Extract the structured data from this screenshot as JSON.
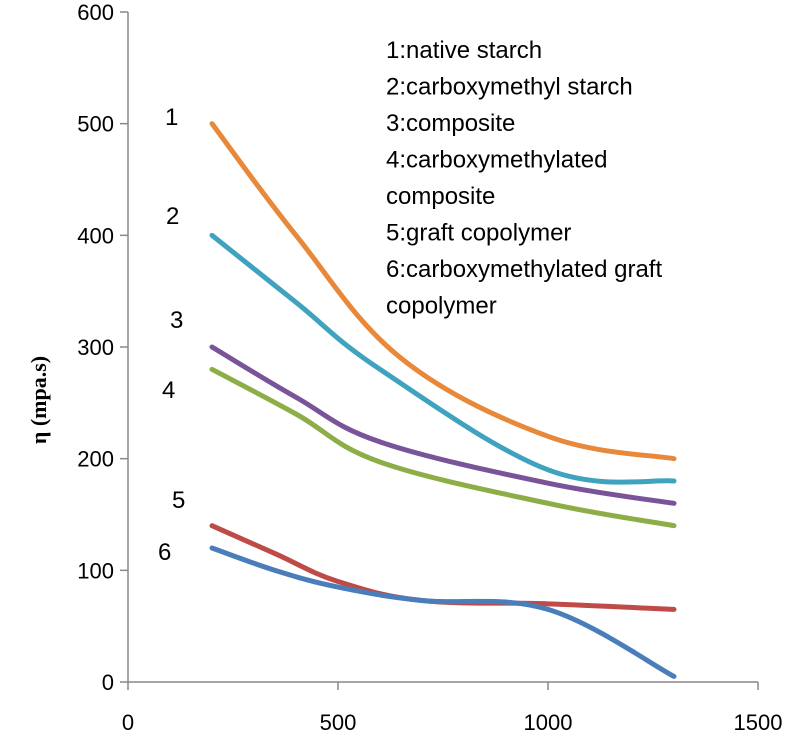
{
  "chart_data": {
    "type": "line",
    "title": "",
    "xlabel": "",
    "ylabel": "η (mpa.s)",
    "xlim": [
      0,
      1500
    ],
    "ylim": [
      0,
      600
    ],
    "xticks": [
      0,
      500,
      1000,
      1500
    ],
    "yticks": [
      0,
      100,
      200,
      300,
      400,
      500,
      600
    ],
    "grid": false,
    "legend": [
      "1:native starch",
      "2:carboxymethyl  starch",
      "3:composite",
      "4:carboxymethylated",
      "composite",
      "5:graft copolymer",
      "6:carboxymethylated graft",
      "copolymer"
    ],
    "series": [
      {
        "label": "1",
        "color": "#E8883A",
        "x": [
          200,
          400,
          650,
          1000,
          1300
        ],
        "y": [
          500,
          400,
          290,
          220,
          200
        ]
      },
      {
        "label": "2",
        "color": "#3FA3C0",
        "x": [
          200,
          400,
          600,
          1000,
          1300
        ],
        "y": [
          400,
          340,
          280,
          190,
          180
        ]
      },
      {
        "label": "3",
        "color": "#7A5499",
        "x": [
          200,
          400,
          600,
          1000,
          1300
        ],
        "y": [
          300,
          255,
          215,
          178,
          160
        ]
      },
      {
        "label": "4",
        "color": "#8DAE46",
        "x": [
          200,
          400,
          600,
          1000,
          1300
        ],
        "y": [
          280,
          240,
          197,
          160,
          140
        ]
      },
      {
        "label": "5",
        "color": "#BE4B48",
        "x": [
          200,
          350,
          500,
          700,
          1000,
          1300
        ],
        "y": [
          140,
          115,
          90,
          73,
          70,
          65
        ]
      },
      {
        "label": "6",
        "color": "#4A7EBB",
        "x": [
          200,
          350,
          500,
          700,
          1000,
          1300
        ],
        "y": [
          120,
          100,
          85,
          73,
          65,
          5
        ]
      }
    ]
  }
}
